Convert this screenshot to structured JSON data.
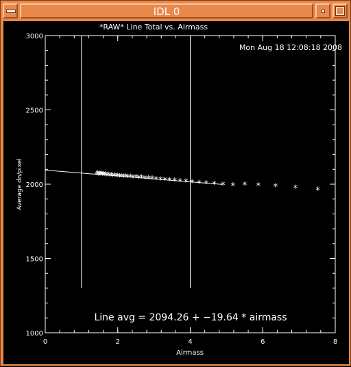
{
  "window": {
    "title": "IDL 0",
    "accent_color": "#e8884a"
  },
  "plot": {
    "timestamp": "Mon Aug 18 12:08:18 2008",
    "fit_label": "Line avg = 2094.26 + −19.64 * airmass"
  },
  "chart_data": {
    "type": "scatter",
    "title": "*RAW* Line Total vs. Airmass",
    "xlabel": "Airmass",
    "ylabel": "Average dn/pixel",
    "xlim": [
      0,
      8
    ],
    "ylim": [
      1000,
      3000
    ],
    "x_ticks": [
      "0",
      "2",
      "4",
      "6",
      "8"
    ],
    "y_ticks": [
      "1000",
      "1500",
      "2000",
      "2500",
      "3000"
    ],
    "vertical_lines_x": [
      1,
      4
    ],
    "fit": {
      "intercept": 2094.26,
      "slope": -19.64,
      "x_range": [
        0,
        4.9
      ]
    },
    "points": [
      [
        1.42,
        2066
      ],
      [
        1.45,
        2072
      ],
      [
        1.48,
        2060
      ],
      [
        1.5,
        2070
      ],
      [
        1.52,
        2064
      ],
      [
        1.55,
        2068
      ],
      [
        1.58,
        2062
      ],
      [
        1.6,
        2066
      ],
      [
        1.63,
        2060
      ],
      [
        1.66,
        2064
      ],
      [
        1.7,
        2058
      ],
      [
        1.74,
        2062
      ],
      [
        1.78,
        2056
      ],
      [
        1.82,
        2060
      ],
      [
        1.86,
        2054
      ],
      [
        1.9,
        2058
      ],
      [
        1.95,
        2052
      ],
      [
        2.0,
        2056
      ],
      [
        2.05,
        2050
      ],
      [
        2.1,
        2053
      ],
      [
        2.16,
        2048
      ],
      [
        2.22,
        2051
      ],
      [
        2.28,
        2046
      ],
      [
        2.35,
        2049
      ],
      [
        2.42,
        2044
      ],
      [
        2.5,
        2046
      ],
      [
        2.58,
        2041
      ],
      [
        2.66,
        2043
      ],
      [
        2.75,
        2039
      ],
      [
        2.85,
        2040
      ],
      [
        2.95,
        2036
      ],
      [
        3.06,
        2033
      ],
      [
        3.18,
        2030
      ],
      [
        3.3,
        2028
      ],
      [
        3.43,
        2025
      ],
      [
        3.57,
        2022
      ],
      [
        3.72,
        2018
      ],
      [
        3.88,
        2015
      ],
      [
        4.05,
        2012
      ],
      [
        4.24,
        2008
      ],
      [
        4.44,
        2004
      ],
      [
        4.66,
        2000
      ],
      [
        4.9,
        1996
      ],
      [
        5.18,
        1991
      ],
      [
        5.5,
        1996
      ],
      [
        5.88,
        1990
      ],
      [
        6.35,
        1983
      ],
      [
        6.9,
        1974
      ],
      [
        7.52,
        1960
      ]
    ]
  }
}
